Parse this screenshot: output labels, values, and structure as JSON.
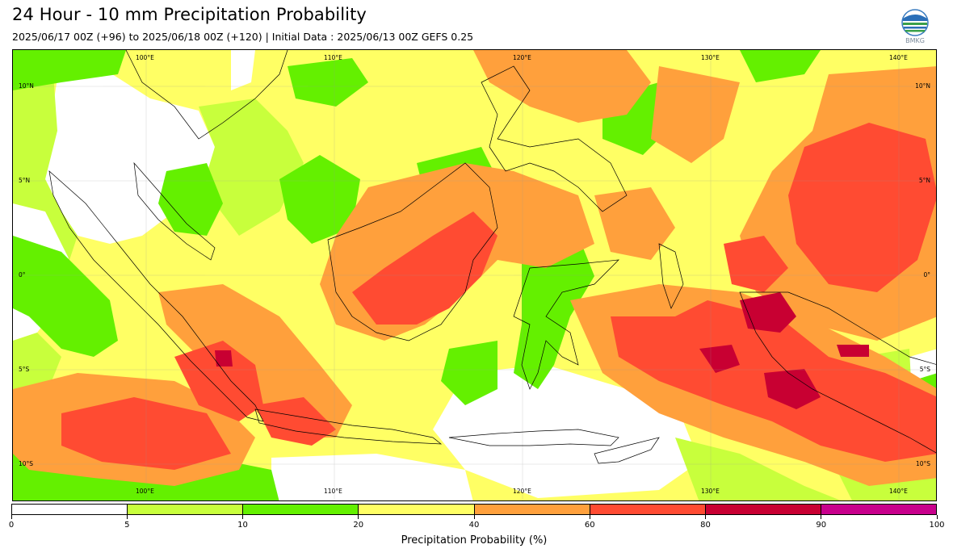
{
  "header": {
    "title": "24 Hour - 10 mm Precipitation Probability",
    "subtitle": "2025/06/17 00Z (+96) to 2025/06/18 00Z (+120) | Initial Data : 2025/06/13 00Z GEFS 0.25",
    "logo_text": "BMKG"
  },
  "map": {
    "lon_labels": [
      "100°E",
      "110°E",
      "120°E",
      "130°E",
      "140°E"
    ],
    "lat_labels": [
      "10°N",
      "5°N",
      "0°",
      "5°S",
      "10°S"
    ]
  },
  "colorbar": {
    "colors": [
      "#ffffff",
      "#c8ff3c",
      "#64f000",
      "#ffff64",
      "#ffa03c",
      "#ff4b32",
      "#c80032",
      "#c8008c"
    ],
    "tick_labels": [
      "0",
      "5",
      "10",
      "20",
      "40",
      "60",
      "80",
      "90",
      "100"
    ],
    "title": "Precipitation Probability (%)"
  }
}
